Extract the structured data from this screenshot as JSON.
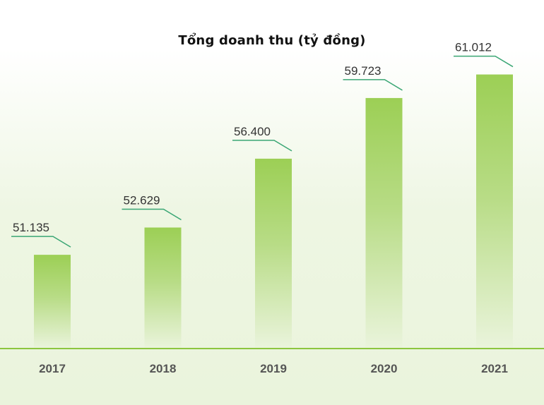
{
  "chart_data": {
    "type": "bar",
    "title": "Tổng doanh thu (tỷ đồng)",
    "categories": [
      "2017",
      "2018",
      "2019",
      "2020",
      "2021"
    ],
    "values": [
      51.135,
      52.629,
      56.4,
      59.723,
      61.012
    ],
    "value_labels": [
      "51.135",
      "52.629",
      "56.400",
      "59.723",
      "61.012"
    ],
    "xlabel": "",
    "ylabel": "",
    "ylim": [
      46,
      62
    ],
    "grid": false,
    "legend": "none",
    "colors": {
      "bar_top": "#9ccf55",
      "bar_bottom": "#eaf4dc",
      "leader_line": "#3aa674",
      "baseline": "#8cc63f"
    }
  }
}
